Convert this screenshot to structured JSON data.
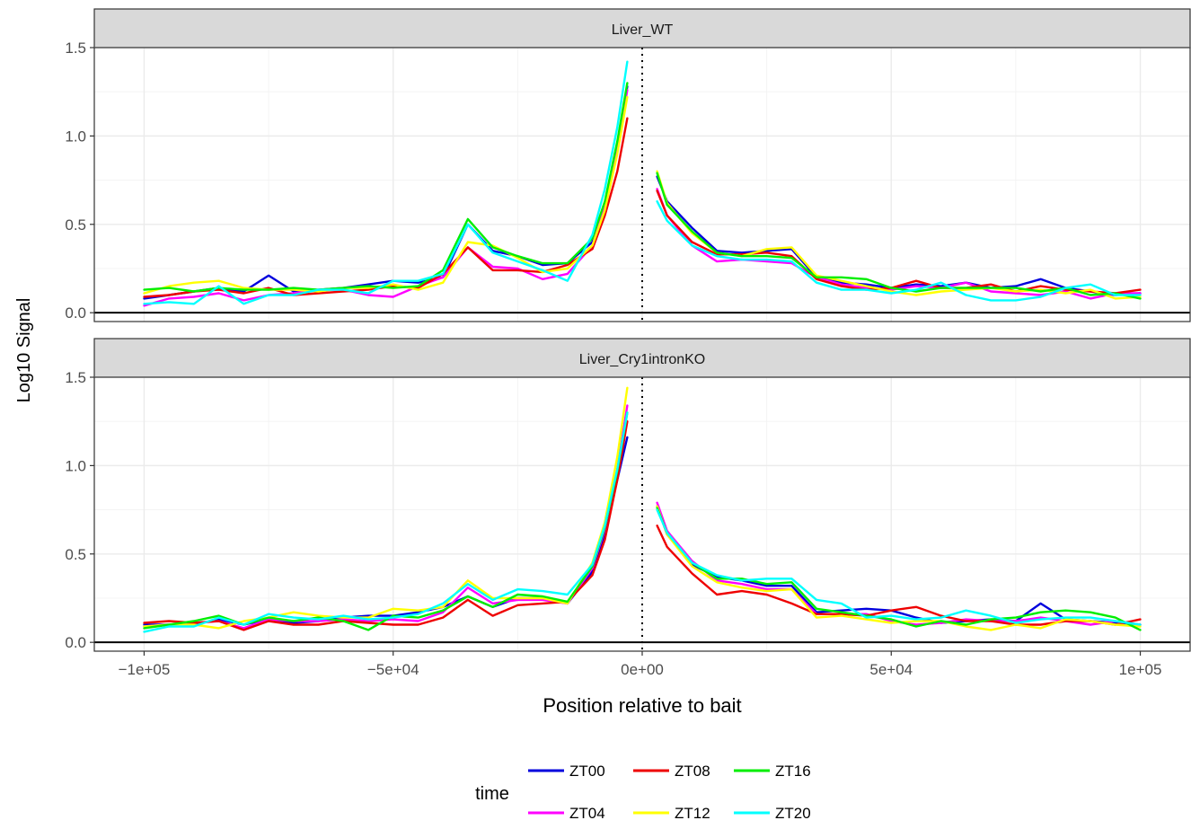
{
  "chart_data": {
    "type": "line",
    "ylabel": "Log10 Signal",
    "xlabel": "Position relative to bait",
    "legend": {
      "title": "time",
      "placement": "bottom"
    },
    "series_colors": {
      "ZT00": "#0000dd",
      "ZT04": "#ff00ff",
      "ZT08": "#ee0000",
      "ZT12": "#ffff00",
      "ZT16": "#00ee00",
      "ZT20": "#00ffff"
    },
    "series_order": [
      "ZT00",
      "ZT04",
      "ZT08",
      "ZT12",
      "ZT16",
      "ZT20"
    ],
    "xlim": [
      -110000,
      110000
    ],
    "ylim": [
      -0.05,
      1.5
    ],
    "x_ticks": [
      -100000,
      -50000,
      0,
      50000,
      100000
    ],
    "x_tick_labels": [
      "-1e+05",
      "-5e+04",
      "0e+00",
      "5e+04",
      "1e+05"
    ],
    "y_ticks": [
      0,
      0.5,
      1.0,
      1.5
    ],
    "y_tick_labels": [
      "0.0",
      "0.5",
      "1.0",
      "1.5"
    ],
    "grid": true,
    "baseline": 0,
    "bait_line_x": 0,
    "x": [
      -100000,
      -95000,
      -90000,
      -85000,
      -80000,
      -75000,
      -70000,
      -65000,
      -60000,
      -55000,
      -50000,
      -45000,
      -40000,
      -35000,
      -30000,
      -25000,
      -20000,
      -15000,
      -10000,
      -7500,
      -5000,
      -3000,
      -1000,
      1000,
      3000,
      5000,
      10000,
      15000,
      20000,
      25000,
      30000,
      35000,
      40000,
      45000,
      50000,
      55000,
      60000,
      65000,
      70000,
      75000,
      80000,
      85000,
      90000,
      95000,
      100000
    ],
    "panels": [
      {
        "title": "Liver_WT",
        "series": [
          {
            "name": "ZT00",
            "values": [
              0.08,
              0.1,
              0.12,
              0.14,
              0.12,
              0.21,
              0.12,
              0.13,
              0.14,
              0.16,
              0.18,
              0.17,
              0.2,
              0.5,
              0.35,
              0.32,
              0.27,
              0.28,
              0.4,
              0.62,
              0.95,
              1.28,
              null,
              null,
              0.77,
              0.63,
              0.48,
              0.35,
              0.34,
              0.35,
              0.36,
              0.2,
              0.17,
              0.16,
              0.14,
              0.16,
              0.15,
              0.17,
              0.14,
              0.15,
              0.19,
              0.14,
              0.12,
              0.1,
              0.11
            ]
          },
          {
            "name": "ZT04",
            "values": [
              0.04,
              0.08,
              0.09,
              0.11,
              0.07,
              0.1,
              0.11,
              0.13,
              0.13,
              0.1,
              0.09,
              0.15,
              0.2,
              0.37,
              0.26,
              0.25,
              0.19,
              0.22,
              0.38,
              0.6,
              0.92,
              1.26,
              null,
              null,
              0.7,
              0.55,
              0.38,
              0.29,
              0.3,
              0.29,
              0.28,
              0.2,
              0.16,
              0.14,
              0.13,
              0.15,
              0.14,
              0.17,
              0.12,
              0.11,
              0.1,
              0.12,
              0.08,
              0.11,
              0.11
            ]
          },
          {
            "name": "ZT08",
            "values": [
              0.09,
              0.1,
              0.12,
              0.13,
              0.11,
              0.14,
              0.1,
              0.11,
              0.12,
              0.13,
              0.15,
              0.14,
              0.22,
              0.37,
              0.24,
              0.24,
              0.23,
              0.27,
              0.36,
              0.55,
              0.8,
              1.1,
              null,
              null,
              0.69,
              0.55,
              0.4,
              0.33,
              0.33,
              0.34,
              0.32,
              0.19,
              0.15,
              0.13,
              0.14,
              0.18,
              0.14,
              0.14,
              0.16,
              0.12,
              0.15,
              0.13,
              0.12,
              0.11,
              0.13
            ]
          },
          {
            "name": "ZT12",
            "values": [
              0.11,
              0.15,
              0.17,
              0.18,
              0.14,
              0.13,
              0.13,
              0.12,
              0.14,
              0.14,
              0.16,
              0.13,
              0.17,
              0.4,
              0.38,
              0.31,
              0.23,
              0.25,
              0.38,
              0.58,
              0.9,
              1.22,
              null,
              null,
              0.8,
              0.62,
              0.45,
              0.34,
              0.32,
              0.36,
              0.37,
              0.21,
              0.18,
              0.15,
              0.12,
              0.1,
              0.12,
              0.13,
              0.14,
              0.12,
              0.13,
              0.11,
              0.13,
              0.08,
              0.09
            ]
          },
          {
            "name": "ZT16",
            "values": [
              0.13,
              0.14,
              0.12,
              0.14,
              0.13,
              0.13,
              0.14,
              0.13,
              0.14,
              0.15,
              0.14,
              0.15,
              0.24,
              0.53,
              0.37,
              0.32,
              0.28,
              0.28,
              0.42,
              0.63,
              0.97,
              1.3,
              null,
              null,
              0.79,
              0.61,
              0.46,
              0.34,
              0.32,
              0.32,
              0.31,
              0.2,
              0.2,
              0.19,
              0.14,
              0.12,
              0.14,
              0.14,
              0.14,
              0.14,
              0.12,
              0.14,
              0.1,
              0.11,
              0.08
            ]
          },
          {
            "name": "ZT20",
            "values": [
              0.05,
              0.06,
              0.05,
              0.15,
              0.05,
              0.1,
              0.1,
              0.13,
              0.13,
              0.11,
              0.18,
              0.18,
              0.22,
              0.5,
              0.34,
              0.29,
              0.24,
              0.18,
              0.44,
              0.7,
              1.05,
              1.42,
              null,
              null,
              0.63,
              0.52,
              0.38,
              0.32,
              0.3,
              0.3,
              0.29,
              0.17,
              0.13,
              0.13,
              0.11,
              0.13,
              0.17,
              0.1,
              0.07,
              0.07,
              0.09,
              0.14,
              0.16,
              0.1,
              0.1
            ]
          }
        ]
      },
      {
        "title": "Liver_Cry1intronKO",
        "series": [
          {
            "name": "ZT00",
            "values": [
              0.1,
              0.1,
              0.1,
              0.13,
              0.1,
              0.13,
              0.11,
              0.12,
              0.14,
              0.15,
              0.15,
              0.17,
              0.2,
              0.26,
              0.2,
              0.25,
              0.25,
              0.22,
              0.4,
              0.62,
              0.92,
              1.16,
              null,
              null,
              0.77,
              0.61,
              0.44,
              0.37,
              0.35,
              0.32,
              0.32,
              0.17,
              0.18,
              0.19,
              0.18,
              0.14,
              0.11,
              0.12,
              0.13,
              0.12,
              0.22,
              0.13,
              0.12,
              0.11,
              0.1
            ]
          },
          {
            "name": "ZT04",
            "values": [
              0.09,
              0.1,
              0.11,
              0.12,
              0.08,
              0.13,
              0.12,
              0.12,
              0.13,
              0.12,
              0.13,
              0.12,
              0.17,
              0.31,
              0.22,
              0.24,
              0.24,
              0.22,
              0.42,
              0.64,
              0.98,
              1.34,
              null,
              null,
              0.79,
              0.63,
              0.46,
              0.35,
              0.33,
              0.3,
              0.3,
              0.16,
              0.16,
              0.16,
              0.12,
              0.1,
              0.11,
              0.13,
              0.12,
              0.12,
              0.14,
              0.12,
              0.1,
              0.12,
              0.1
            ]
          },
          {
            "name": "ZT08",
            "values": [
              0.11,
              0.12,
              0.11,
              0.12,
              0.07,
              0.12,
              0.1,
              0.1,
              0.12,
              0.11,
              0.1,
              0.1,
              0.14,
              0.24,
              0.15,
              0.21,
              0.22,
              0.23,
              0.38,
              0.58,
              0.92,
              1.25,
              null,
              null,
              0.66,
              0.54,
              0.39,
              0.27,
              0.29,
              0.27,
              0.22,
              0.16,
              0.16,
              0.15,
              0.18,
              0.2,
              0.15,
              0.12,
              0.12,
              0.1,
              0.1,
              0.12,
              0.12,
              0.1,
              0.13
            ]
          },
          {
            "name": "ZT12",
            "values": [
              0.09,
              0.1,
              0.1,
              0.08,
              0.12,
              0.14,
              0.17,
              0.15,
              0.14,
              0.14,
              0.19,
              0.18,
              0.2,
              0.35,
              0.25,
              0.25,
              0.25,
              0.22,
              0.45,
              0.68,
              1.05,
              1.44,
              null,
              null,
              0.77,
              0.61,
              0.43,
              0.34,
              0.31,
              0.29,
              0.3,
              0.14,
              0.15,
              0.13,
              0.11,
              0.12,
              0.12,
              0.09,
              0.07,
              0.1,
              0.08,
              0.13,
              0.12,
              0.1,
              0.09
            ]
          },
          {
            "name": "ZT16",
            "values": [
              0.08,
              0.1,
              0.12,
              0.15,
              0.1,
              0.14,
              0.12,
              0.14,
              0.12,
              0.07,
              0.15,
              0.14,
              0.18,
              0.26,
              0.2,
              0.27,
              0.26,
              0.23,
              0.43,
              0.65,
              0.97,
              1.3,
              null,
              null,
              0.76,
              0.62,
              0.45,
              0.36,
              0.36,
              0.33,
              0.34,
              0.19,
              0.17,
              0.15,
              0.13,
              0.09,
              0.12,
              0.1,
              0.13,
              0.14,
              0.17,
              0.18,
              0.17,
              0.14,
              0.07
            ]
          },
          {
            "name": "ZT20",
            "values": [
              0.06,
              0.09,
              0.09,
              0.14,
              0.1,
              0.16,
              0.14,
              0.13,
              0.15,
              0.13,
              0.14,
              0.16,
              0.22,
              0.33,
              0.24,
              0.3,
              0.29,
              0.27,
              0.44,
              0.66,
              0.98,
              1.3,
              null,
              null,
              0.75,
              0.62,
              0.45,
              0.38,
              0.35,
              0.36,
              0.36,
              0.24,
              0.22,
              0.14,
              0.15,
              0.13,
              0.14,
              0.18,
              0.15,
              0.11,
              0.13,
              0.14,
              0.14,
              0.12,
              0.1
            ]
          }
        ]
      }
    ]
  }
}
